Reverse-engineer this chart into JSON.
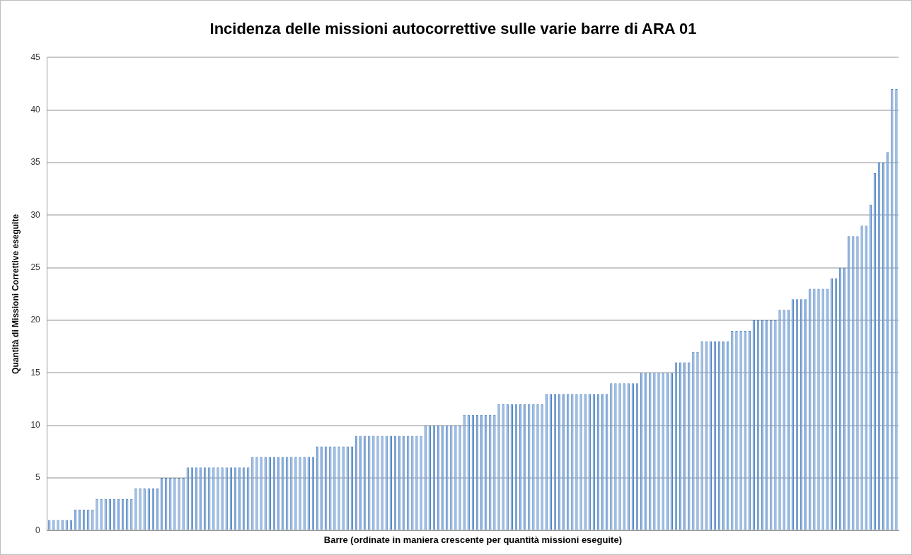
{
  "chart_data": {
    "type": "bar",
    "title": "Incidenza delle missioni autocorrettive sulle varie barre di ARA 01",
    "xlabel": "Barre (ordinate in maniera crescente per quantità missioni eseguite)",
    "ylabel": "Quantità di Missioni Correttive eseguite",
    "categories": [
      null,
      null,
      null,
      null,
      null,
      null,
      null,
      null,
      null,
      null,
      null,
      null,
      null,
      null,
      null,
      null,
      null,
      null,
      null,
      null,
      null,
      null,
      null,
      null,
      null,
      null,
      null,
      null,
      null,
      null,
      null,
      null,
      null,
      null,
      null,
      null,
      null,
      null,
      null,
      null,
      null,
      null,
      null,
      null,
      null,
      null,
      null,
      null,
      null,
      null,
      null,
      null,
      null,
      null,
      null,
      null,
      null,
      null,
      null,
      null,
      null,
      null,
      null,
      null,
      null,
      null,
      null,
      null,
      null,
      null,
      null,
      null,
      null,
      null,
      null,
      null,
      null,
      null,
      null,
      null,
      null,
      null,
      null,
      null,
      null,
      null,
      null,
      null,
      null,
      null,
      null,
      null,
      null,
      null,
      null,
      null,
      null,
      null,
      null,
      null,
      null,
      null,
      null,
      null,
      null,
      null,
      null,
      null,
      null,
      null,
      null,
      null,
      null,
      null,
      null,
      null,
      null,
      null,
      null,
      null,
      null,
      null,
      null,
      null,
      null,
      null,
      null,
      null,
      null,
      null,
      null,
      null,
      null,
      null,
      null,
      null,
      null,
      null,
      null,
      null,
      null,
      null,
      null,
      null,
      null,
      null,
      null,
      null,
      null,
      null,
      null,
      null,
      null,
      null,
      null,
      null,
      null,
      null,
      null,
      null,
      null,
      null,
      null,
      null,
      null,
      null,
      null,
      null,
      null,
      null,
      null,
      null,
      null,
      null,
      null,
      null,
      null,
      null,
      null,
      null,
      null,
      null,
      null,
      null,
      null,
      null,
      null,
      null,
      null,
      null,
      null,
      null,
      null,
      null,
      null,
      null,
      null
    ],
    "values": [
      1,
      1,
      1,
      1,
      1,
      1,
      2,
      2,
      2,
      2,
      2,
      3,
      3,
      3,
      3,
      3,
      3,
      3,
      3,
      3,
      4,
      4,
      4,
      4,
      4,
      4,
      5,
      5,
      5,
      5,
      5,
      5,
      6,
      6,
      6,
      6,
      6,
      6,
      6,
      6,
      6,
      6,
      6,
      6,
      6,
      6,
      6,
      7,
      7,
      7,
      7,
      7,
      7,
      7,
      7,
      7,
      7,
      7,
      7,
      7,
      7,
      7,
      8,
      8,
      8,
      8,
      8,
      8,
      8,
      8,
      8,
      9,
      9,
      9,
      9,
      9,
      9,
      9,
      9,
      9,
      9,
      9,
      9,
      9,
      9,
      9,
      9,
      10,
      10,
      10,
      10,
      10,
      10,
      10,
      10,
      10,
      11,
      11,
      11,
      11,
      11,
      11,
      11,
      11,
      12,
      12,
      12,
      12,
      12,
      12,
      12,
      12,
      12,
      12,
      12,
      13,
      13,
      13,
      13,
      13,
      13,
      13,
      13,
      13,
      13,
      13,
      13,
      13,
      13,
      13,
      14,
      14,
      14,
      14,
      14,
      14,
      14,
      15,
      15,
      15,
      15,
      15,
      15,
      15,
      15,
      16,
      16,
      16,
      16,
      17,
      17,
      18,
      18,
      18,
      18,
      18,
      18,
      18,
      19,
      19,
      19,
      19,
      19,
      20,
      20,
      20,
      20,
      20,
      20,
      21,
      21,
      21,
      22,
      22,
      22,
      22,
      23,
      23,
      23,
      23,
      23,
      24,
      24,
      25,
      25,
      28,
      28,
      28,
      29,
      29,
      31,
      34,
      35,
      35,
      36,
      42,
      42
    ],
    "color": "#8fb4e3",
    "ylim": [
      0,
      45
    ],
    "yticks": [
      0,
      5,
      10,
      15,
      20,
      25,
      30,
      35,
      40,
      45
    ],
    "grid": "y",
    "legend": false
  }
}
